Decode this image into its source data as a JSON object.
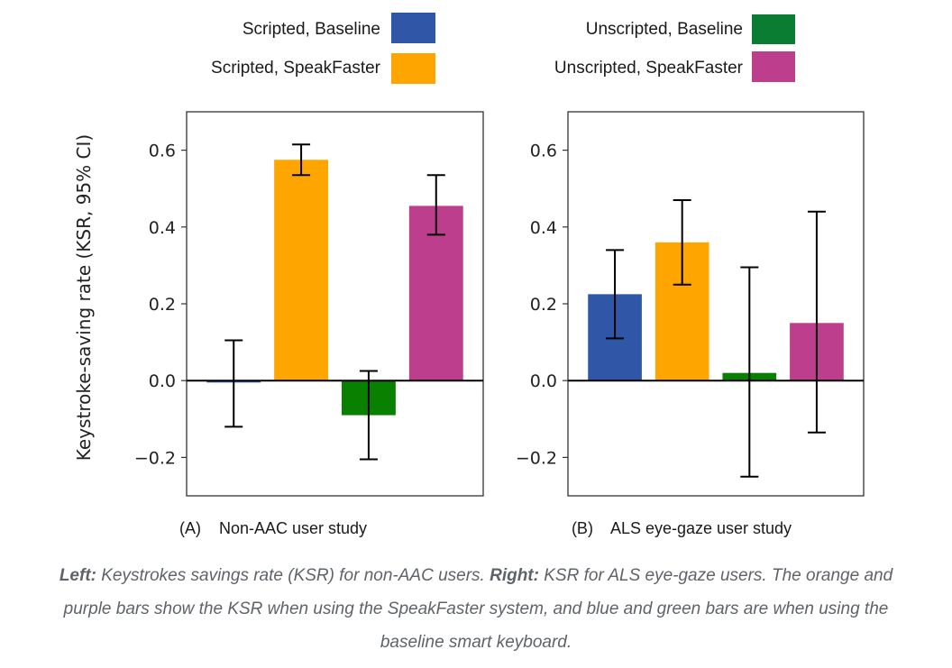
{
  "chart_data": [
    {
      "type": "bar",
      "panel": "A",
      "title": "(A)    Non-AAC user study",
      "ylabel": "Keystroke-saving rate (KSR, 95% CI)",
      "xlabel": "",
      "ylim": [
        -0.3,
        0.7
      ],
      "yticks": [
        -0.2,
        0.0,
        0.2,
        0.4,
        0.6
      ],
      "ytick_labels": [
        "−0.2",
        "0.0",
        "0.2",
        "0.4",
        "0.6"
      ],
      "grid": false,
      "series": [
        {
          "name": "Scripted, Baseline",
          "value": -0.005,
          "ci": [
            -0.12,
            0.105
          ]
        },
        {
          "name": "Scripted, SpeakFaster",
          "value": 0.575,
          "ci": [
            0.535,
            0.615
          ]
        },
        {
          "name": "Unscripted, Baseline",
          "value": -0.09,
          "ci": [
            -0.205,
            0.025
          ]
        },
        {
          "name": "Unscripted, SpeakFaster",
          "value": 0.455,
          "ci": [
            0.38,
            0.535
          ]
        }
      ]
    },
    {
      "type": "bar",
      "panel": "B",
      "title": "(B)    ALS eye-gaze user study",
      "ylabel": "",
      "xlabel": "",
      "ylim": [
        -0.3,
        0.7
      ],
      "yticks": [
        -0.2,
        0.0,
        0.2,
        0.4,
        0.6
      ],
      "ytick_labels": [
        "−0.2",
        "0.0",
        "0.2",
        "0.4",
        "0.6"
      ],
      "grid": false,
      "series": [
        {
          "name": "Scripted, Baseline",
          "value": 0.225,
          "ci": [
            0.11,
            0.34
          ]
        },
        {
          "name": "Scripted, SpeakFaster",
          "value": 0.36,
          "ci": [
            0.25,
            0.47
          ]
        },
        {
          "name": "Unscripted, Baseline",
          "value": 0.02,
          "ci": [
            -0.25,
            0.295
          ]
        },
        {
          "name": "Unscripted, SpeakFaster",
          "value": 0.15,
          "ci": [
            -0.135,
            0.44
          ]
        }
      ]
    }
  ],
  "legend": {
    "placement": "top",
    "entries": [
      {
        "label": "Scripted, Baseline",
        "color": "#3056a8"
      },
      {
        "label": "Scripted, SpeakFaster",
        "color": "#ffa500"
      },
      {
        "label": "Unscripted, Baseline",
        "color": "#0a7d32"
      },
      {
        "label": "Unscripted, SpeakFaster",
        "color": "#bd3e8c"
      }
    ]
  },
  "bar_colors": [
    "#3056a8",
    "#ffa500",
    "#0a8000",
    "#bd3e8c"
  ],
  "caption": {
    "left_label": "Left:",
    "left_text": " Keystrokes savings rate (KSR) for non-AAC users. ",
    "right_label": "Right:",
    "right_text": " KSR for ALS eye-gaze users. The orange and purple bars show the KSR when using the SpeakFaster system, and blue and green bars are when using the baseline smart keyboard."
  }
}
